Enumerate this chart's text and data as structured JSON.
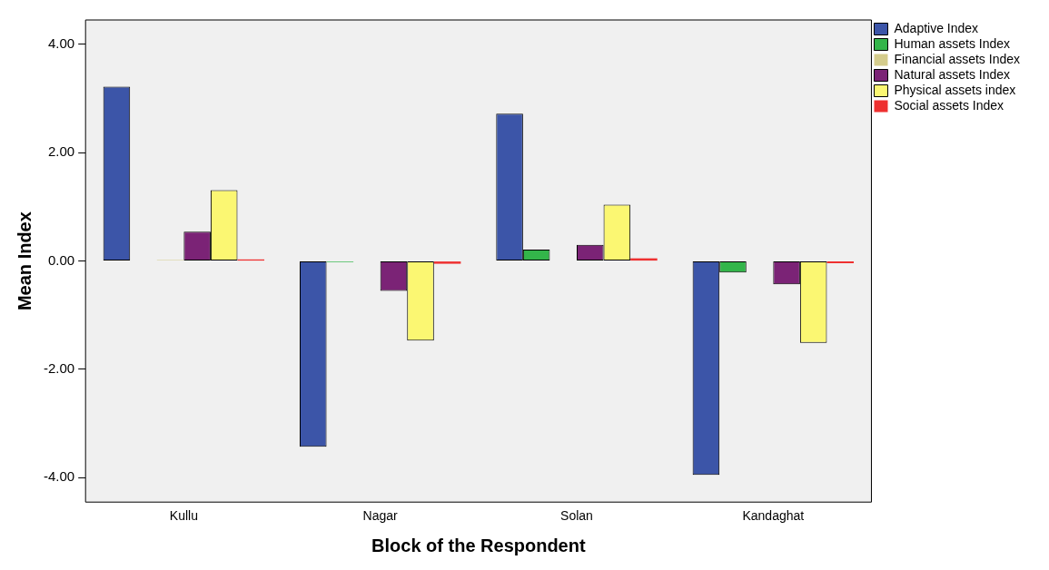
{
  "chart_data": {
    "type": "bar",
    "xlabel": "Block of the Respondent",
    "ylabel": "Mean Index",
    "categories": [
      "Kullu",
      "Nagar",
      "Solan",
      "Kandaghat"
    ],
    "series": [
      {
        "name": "Adaptive Index",
        "color": "#3c55a8",
        "values": [
          3.22,
          -3.43,
          2.72,
          -3.95
        ]
      },
      {
        "name": "Human assets Index",
        "color": "#33b54a",
        "values": [
          null,
          -0.02,
          0.21,
          -0.21
        ]
      },
      {
        "name": "Financial assets Index",
        "color": "#d4cc8c",
        "values": [
          0.02,
          null,
          null,
          null
        ]
      },
      {
        "name": "Natural assets Index",
        "color": "#7b2376",
        "values": [
          0.54,
          -0.55,
          0.3,
          -0.43
        ]
      },
      {
        "name": "Physical assets index",
        "color": "#fbf772",
        "values": [
          1.31,
          -1.47,
          1.04,
          -1.51
        ]
      },
      {
        "name": "Social assets Index",
        "color": "#ee3030",
        "values": [
          0.03,
          -0.05,
          0.05,
          -0.04
        ]
      }
    ],
    "ylim": [
      -4.45,
      4.45
    ],
    "yticks": [
      {
        "value": -4,
        "label": "-4.00"
      },
      {
        "value": -2,
        "label": "-2.00"
      },
      {
        "value": 0,
        "label": "0.00"
      },
      {
        "value": 2,
        "label": "2.00"
      },
      {
        "value": 4,
        "label": "4.00"
      }
    ],
    "grid": false,
    "legend": "top right"
  }
}
